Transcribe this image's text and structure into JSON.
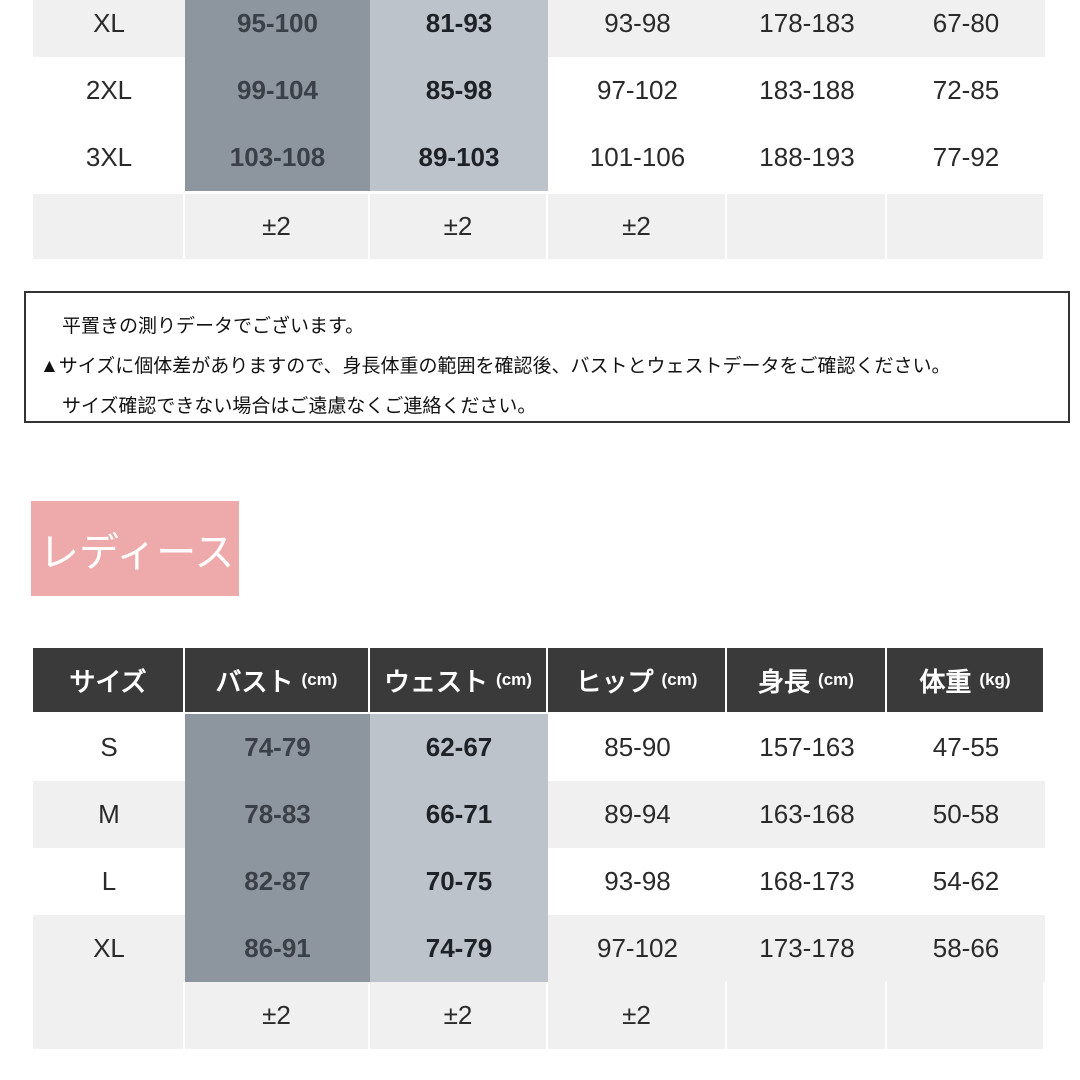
{
  "mens_table": {
    "rows": [
      {
        "size": "XL",
        "bust": "95-100",
        "waist": "81-93",
        "hip": "93-98",
        "height": "178-183",
        "weight": "67-80"
      },
      {
        "size": "2XL",
        "bust": "99-104",
        "waist": "85-98",
        "hip": "97-102",
        "height": "183-188",
        "weight": "72-85"
      },
      {
        "size": "3XL",
        "bust": "103-108",
        "waist": "89-103",
        "hip": "101-106",
        "height": "188-193",
        "weight": "77-92"
      }
    ],
    "tolerance": {
      "size": "",
      "bust": "±2",
      "waist": "±2",
      "hip": "±2",
      "height": "",
      "weight": ""
    }
  },
  "note": {
    "lines": [
      "平置きの測りデータでございます。",
      "▲サイズに個体差がありますので、身長体重の範囲を確認後、バストとウェストデータをご確認ください。",
      "サイズ確認できない場合はご遠慮なくご連絡ください。"
    ]
  },
  "ladies_label": "レディース",
  "ladies_table": {
    "headers": [
      {
        "label": "サイズ",
        "unit": ""
      },
      {
        "label": "バスト",
        "unit": "(cm)"
      },
      {
        "label": "ウェスト",
        "unit": "(cm)"
      },
      {
        "label": "ヒップ",
        "unit": "(cm)"
      },
      {
        "label": "身長",
        "unit": "(cm)"
      },
      {
        "label": "体重",
        "unit": "(kg)"
      }
    ],
    "rows": [
      {
        "size": "S",
        "bust": "74-79",
        "waist": "62-67",
        "hip": "85-90",
        "height": "157-163",
        "weight": "47-55"
      },
      {
        "size": "M",
        "bust": "78-83",
        "waist": "66-71",
        "hip": "89-94",
        "height": "163-168",
        "weight": "50-58"
      },
      {
        "size": "L",
        "bust": "82-87",
        "waist": "70-75",
        "hip": "93-98",
        "height": "168-173",
        "weight": "54-62"
      },
      {
        "size": "XL",
        "bust": "86-91",
        "waist": "74-79",
        "hip": "97-102",
        "height": "173-178",
        "weight": "58-66"
      }
    ],
    "tolerance": {
      "size": "",
      "bust": "±2",
      "waist": "±2",
      "hip": "±2",
      "height": "",
      "weight": ""
    }
  },
  "colors": {
    "header_bg": "#3a3a3a",
    "bust_col": "#8d959e",
    "waist_col": "#bcc3cb",
    "ladies_tag": "#eeaaaa"
  }
}
